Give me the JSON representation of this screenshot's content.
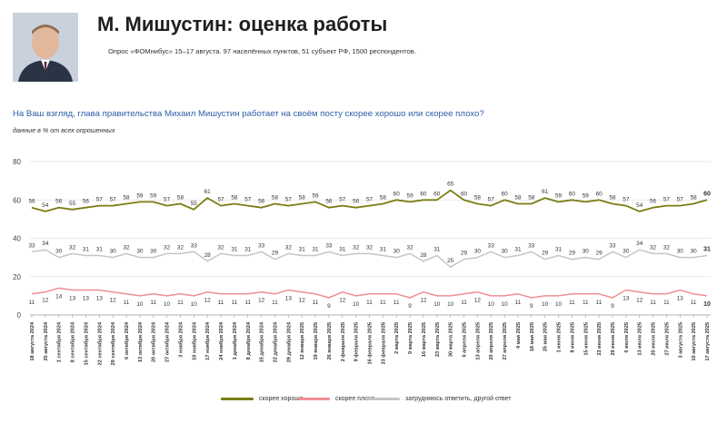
{
  "header": {
    "title": "М. Мишустин: оценка работы",
    "subtitle": "Опрос «ФОМнибус» 15–17 августа. 97 населённых пунктов, 51 субъект РФ, 1500 респондентов."
  },
  "question": "На Ваш взгляд, глава правительства Михаил Мишустин работает на своём посту скорее хорошо или скорее плохо?",
  "note": "данные в % от всех опрошенных",
  "chart_data": {
    "type": "line",
    "ylim": [
      0,
      80
    ],
    "yticks": [
      0,
      20,
      40,
      60,
      80
    ],
    "grid": true,
    "legend_placement": "bottom",
    "categories": [
      "18 августа 2024",
      "25 августа 2024",
      "1 сентября 2024",
      "8 сентября 2024",
      "15 сентября 2024",
      "22 сентября 2024",
      "29 сентября 2024",
      "6 октября 2024",
      "13 октября 2024",
      "20 октября 2024",
      "27 октября 2024",
      "3 ноября 2024",
      "10 ноября 2024",
      "17 ноября 2024",
      "24 ноября 2024",
      "1 декабря 2024",
      "8 декабря 2024",
      "15 декабря 2024",
      "22 декабря 2024",
      "29 декабря 2024",
      "12 января 2025",
      "19 января 2025",
      "26 января 2025",
      "2 февраля 2025",
      "9 февраля 2025",
      "16 февраля 2025",
      "23 февраля 2025",
      "2 марта 2025",
      "9 марта 2025",
      "16 марта 2025",
      "23 марта 2025",
      "30 марта 2025",
      "6 апреля 2025",
      "13 апреля 2025",
      "20 апреля 2025",
      "27 апреля 2025",
      "4 мая 2025",
      "18 мая 2025",
      "25 мая 2025",
      "1 июня 2025",
      "8 июня 2025",
      "15 июня 2025",
      "22 июня 2025",
      "29 июня 2025",
      "6 июля 2025",
      "13 июля 2025",
      "20 июля 2025",
      "27 июля 2025",
      "3 августа 2025",
      "10 августа 2025",
      "17 августа 2025"
    ],
    "series": [
      {
        "name": "скорее хорошо",
        "color": "#7a7d12",
        "values": [
          56,
          54,
          56,
          55,
          56,
          57,
          57,
          58,
          59,
          59,
          57,
          58,
          55,
          61,
          57,
          58,
          57,
          56,
          58,
          57,
          58,
          59,
          56,
          57,
          56,
          57,
          58,
          60,
          59,
          60,
          60,
          65,
          60,
          58,
          57,
          60,
          58,
          58,
          61,
          59,
          60,
          59,
          60,
          58,
          57,
          54,
          56,
          57,
          57,
          58,
          60
        ]
      },
      {
        "name": "скорее плохо",
        "color": "#ef8f93",
        "values": [
          11,
          12,
          14,
          13,
          13,
          13,
          12,
          11,
          10,
          11,
          10,
          11,
          10,
          12,
          11,
          11,
          11,
          12,
          11,
          13,
          12,
          11,
          9,
          12,
          10,
          11,
          11,
          11,
          9,
          12,
          10,
          10,
          11,
          12,
          10,
          10,
          11,
          9,
          10,
          10,
          11,
          11,
          11,
          9,
          13,
          12,
          11,
          11,
          13,
          11,
          10
        ]
      },
      {
        "name": "затрудняюсь ответить, другой ответ",
        "color": "#c6c6c6",
        "values": [
          33,
          34,
          30,
          32,
          31,
          31,
          30,
          32,
          30,
          30,
          32,
          32,
          33,
          28,
          32,
          31,
          31,
          33,
          29,
          32,
          31,
          31,
          33,
          31,
          32,
          32,
          31,
          30,
          32,
          28,
          31,
          25,
          29,
          30,
          33,
          30,
          31,
          33,
          29,
          31,
          29,
          30,
          29,
          33,
          30,
          34,
          32,
          32,
          30,
          30,
          31
        ]
      }
    ],
    "labels_every_other": true
  }
}
